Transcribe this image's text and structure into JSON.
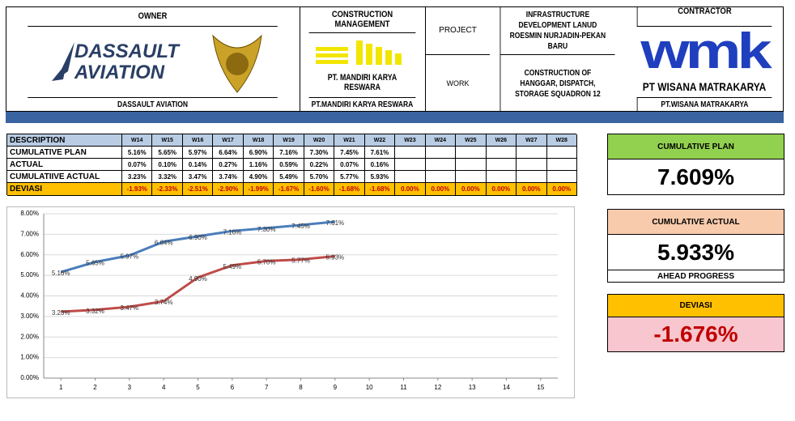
{
  "header": {
    "owner": {
      "title": "OWNER",
      "logo": [
        "DASSAULT",
        "AVIATION"
      ],
      "footer": "DASSAULT AVIATION"
    },
    "cm": {
      "title": "CONSTRUCTION MANAGEMENT",
      "logo": "PT. MANDIRI KARYA RESWARA",
      "footer": "PT.MANDIRI KARYA RESWARA"
    },
    "project": {
      "label": "PROJECT",
      "value": "INFRASTRUCTURE DEVELOPMENT LANUD ROESMIN NURJADIN-PEKAN BARU"
    },
    "work": {
      "label": "WORK",
      "value": "CONSTRUCTION OF HANGGAR, DISPATCH, STORAGE SQUADRON 12"
    },
    "contractor": {
      "title": "CONTRACTOR",
      "logo": "wmk",
      "logo_name": "PT WISANA MATRAKARYA",
      "footer": "PT.WISANA MATRAKARYA"
    }
  },
  "table": {
    "rows": [
      [
        "DESCRIPTION",
        "W14",
        "W15",
        "W16",
        "W17",
        "W18",
        "W19",
        "W20",
        "W21",
        "W22",
        "W23",
        "W24",
        "W25",
        "W26",
        "W27",
        "W28"
      ],
      [
        "CUMULATIVE PLAN",
        "5.16%",
        "5.65%",
        "5.97%",
        "6.64%",
        "6.90%",
        "7.16%",
        "7.30%",
        "7.45%",
        "7.61%",
        null,
        null,
        null,
        null,
        null,
        null
      ],
      [
        "ACTUAL",
        "0.07%",
        "0.10%",
        "0.14%",
        "0.27%",
        "1.16%",
        "0.59%",
        "0.22%",
        "0.07%",
        "0.16%",
        null,
        null,
        null,
        null,
        null,
        null
      ],
      [
        "CUMULATIIVE ACTUAL",
        "3.23%",
        "3.32%",
        "3.47%",
        "3.74%",
        "4.90%",
        "5.49%",
        "5.70%",
        "5.77%",
        "5.93%",
        null,
        null,
        null,
        null,
        null,
        null
      ],
      [
        "DEVIASI",
        "-1.93%",
        "-2.33%",
        "-2.51%",
        "-2.90%",
        "-1.99%",
        "-1.67%",
        "-1.60%",
        "-1.68%",
        "-1.68%",
        "0.00%",
        "0.00%",
        "0.00%",
        "0.00%",
        "0.00%",
        "0.00%"
      ]
    ]
  },
  "chart_data": {
    "type": "line",
    "x": [
      1,
      2,
      3,
      4,
      5,
      6,
      7,
      8,
      9
    ],
    "xlim": [
      0.5,
      15.5
    ],
    "xticks": [
      1,
      2,
      3,
      4,
      5,
      6,
      7,
      8,
      9,
      10,
      11,
      12,
      13,
      14,
      15
    ],
    "ylim": [
      0,
      8
    ],
    "yticks": [
      {
        "value": 0,
        "label": "0.00%"
      },
      {
        "value": 1,
        "label": "1.00%"
      },
      {
        "value": 2,
        "label": "2.00%"
      },
      {
        "value": 3,
        "label": "3.00%"
      },
      {
        "value": 4,
        "label": "4.00%"
      },
      {
        "value": 5,
        "label": "5.00%"
      },
      {
        "value": 6,
        "label": "6.00%"
      },
      {
        "value": 7,
        "label": "7.00%"
      },
      {
        "value": 8,
        "label": "8.00%"
      }
    ],
    "grid": true,
    "series": [
      {
        "color": "#4a7ebb",
        "values": [
          5.16,
          5.65,
          5.97,
          6.64,
          6.9,
          7.16,
          7.3,
          7.45,
          7.61
        ],
        "value_labels": [
          "5.16%",
          "5.65%",
          "5.97%",
          "6.64%",
          "6.90%",
          "7.16%",
          "7.30%",
          "7.45%",
          "7.61%"
        ]
      },
      {
        "color": "#be4b48",
        "values": [
          3.23,
          3.32,
          3.47,
          3.74,
          4.9,
          5.49,
          5.7,
          5.77,
          5.93
        ],
        "value_labels": [
          "3.23%",
          "3.32%",
          "3.47%",
          "3.74%",
          "4.90%",
          "5.49%",
          "5.70%",
          "5.77%",
          "5.93%"
        ]
      }
    ]
  },
  "kpi": {
    "plan": {
      "label": "CUMULATIVE PLAN",
      "value": "7.609%"
    },
    "actual": {
      "label": "CUMULATIVE ACTUAL",
      "value": "5.933%",
      "note": "AHEAD PROGRESS"
    },
    "deviasi": {
      "label": "DEVIASI",
      "value": "-1.676%"
    }
  }
}
